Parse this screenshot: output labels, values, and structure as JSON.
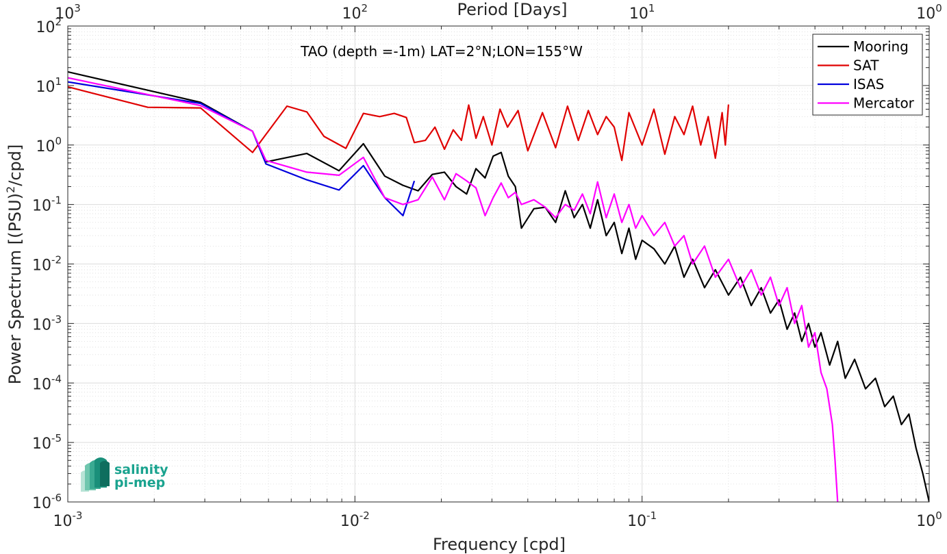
{
  "chart_data": {
    "type": "line",
    "title": "TAO (depth =-1m) LAT=2°N;LON=155°W",
    "xlabel": "Frequency [cpd]",
    "ylabel": "Power Spectrum [(PSU)",
    "ylabel_sup": "2",
    "ylabel_tail": "/cpd]",
    "top_xlabel": "Period [Days]",
    "x_scale": "log",
    "y_scale": "log",
    "xlim": [
      0.001,
      1
    ],
    "ylim": [
      1e-06,
      100
    ],
    "grid": true,
    "legend_position": "top-right",
    "x_ticks": [
      {
        "base": "10",
        "exp": "-3",
        "value": 0.001
      },
      {
        "base": "10",
        "exp": "-2",
        "value": 0.01
      },
      {
        "base": "10",
        "exp": "-1",
        "value": 0.1
      },
      {
        "base": "10",
        "exp": "0",
        "value": 1
      }
    ],
    "top_x_ticks": [
      {
        "base": "10",
        "exp": "3",
        "value": 0.001
      },
      {
        "base": "10",
        "exp": "2",
        "value": 0.01
      },
      {
        "base": "10",
        "exp": "1",
        "value": 0.1
      },
      {
        "base": "10",
        "exp": "0",
        "value": 1
      }
    ],
    "y_ticks": [
      {
        "base": "10",
        "exp": "-6",
        "value": 1e-06
      },
      {
        "base": "10",
        "exp": "-5",
        "value": 1e-05
      },
      {
        "base": "10",
        "exp": "-4",
        "value": 0.0001
      },
      {
        "base": "10",
        "exp": "-3",
        "value": 0.001
      },
      {
        "base": "10",
        "exp": "-2",
        "value": 0.01
      },
      {
        "base": "10",
        "exp": "-1",
        "value": 0.1
      },
      {
        "base": "10",
        "exp": "0",
        "value": 1
      },
      {
        "base": "10",
        "exp": "1",
        "value": 10
      },
      {
        "base": "10",
        "exp": "2",
        "value": 100
      }
    ],
    "series": [
      {
        "name": "Mooring",
        "color": "#000000",
        "points": [
          [
            0.001,
            17
          ],
          [
            0.0029,
            5.2
          ],
          [
            0.0044,
            1.7
          ],
          [
            0.0049,
            0.52
          ],
          [
            0.0068,
            0.72
          ],
          [
            0.0088,
            0.37
          ],
          [
            0.0107,
            1.05
          ],
          [
            0.0127,
            0.3
          ],
          [
            0.0147,
            0.21
          ],
          [
            0.0166,
            0.17
          ],
          [
            0.0186,
            0.32
          ],
          [
            0.0205,
            0.35
          ],
          [
            0.0225,
            0.2
          ],
          [
            0.0245,
            0.15
          ],
          [
            0.0264,
            0.4
          ],
          [
            0.0284,
            0.28
          ],
          [
            0.0303,
            0.65
          ],
          [
            0.0323,
            0.75
          ],
          [
            0.0342,
            0.3
          ],
          [
            0.0362,
            0.2
          ],
          [
            0.038,
            0.04
          ],
          [
            0.042,
            0.085
          ],
          [
            0.046,
            0.09
          ],
          [
            0.05,
            0.05
          ],
          [
            0.054,
            0.17
          ],
          [
            0.058,
            0.06
          ],
          [
            0.062,
            0.1
          ],
          [
            0.066,
            0.04
          ],
          [
            0.07,
            0.12
          ],
          [
            0.075,
            0.03
          ],
          [
            0.08,
            0.05
          ],
          [
            0.085,
            0.015
          ],
          [
            0.09,
            0.04
          ],
          [
            0.095,
            0.012
          ],
          [
            0.1,
            0.025
          ],
          [
            0.11,
            0.018
          ],
          [
            0.12,
            0.01
          ],
          [
            0.13,
            0.02
          ],
          [
            0.14,
            0.006
          ],
          [
            0.15,
            0.012
          ],
          [
            0.165,
            0.004
          ],
          [
            0.18,
            0.008
          ],
          [
            0.2,
            0.003
          ],
          [
            0.22,
            0.006
          ],
          [
            0.24,
            0.002
          ],
          [
            0.26,
            0.004
          ],
          [
            0.28,
            0.0015
          ],
          [
            0.3,
            0.0025
          ],
          [
            0.32,
            0.0008
          ],
          [
            0.34,
            0.0015
          ],
          [
            0.36,
            0.0005
          ],
          [
            0.38,
            0.001
          ],
          [
            0.4,
            0.0004
          ],
          [
            0.42,
            0.0007
          ],
          [
            0.45,
            0.0002
          ],
          [
            0.48,
            0.0005
          ],
          [
            0.51,
            0.00012
          ],
          [
            0.55,
            0.00025
          ],
          [
            0.6,
            8e-05
          ],
          [
            0.65,
            0.00012
          ],
          [
            0.7,
            4e-05
          ],
          [
            0.75,
            6e-05
          ],
          [
            0.8,
            2e-05
          ],
          [
            0.85,
            3e-05
          ],
          [
            0.9,
            8e-06
          ],
          [
            0.95,
            3e-06
          ],
          [
            1.0,
            1e-06
          ]
        ]
      },
      {
        "name": "SAT",
        "color": "#e00000",
        "points": [
          [
            0.001,
            9.5
          ],
          [
            0.0019,
            4.3
          ],
          [
            0.0029,
            4.2
          ],
          [
            0.0044,
            0.75
          ],
          [
            0.0058,
            4.5
          ],
          [
            0.0068,
            3.6
          ],
          [
            0.0078,
            1.4
          ],
          [
            0.0093,
            0.88
          ],
          [
            0.0107,
            3.4
          ],
          [
            0.0122,
            3.0
          ],
          [
            0.0137,
            3.4
          ],
          [
            0.0151,
            2.9
          ],
          [
            0.0161,
            1.1
          ],
          [
            0.0176,
            1.2
          ],
          [
            0.019,
            2.0
          ],
          [
            0.0205,
            0.85
          ],
          [
            0.022,
            1.8
          ],
          [
            0.0235,
            1.2
          ],
          [
            0.0249,
            4.7
          ],
          [
            0.0264,
            1.3
          ],
          [
            0.028,
            3.0
          ],
          [
            0.03,
            1.0
          ],
          [
            0.032,
            4.0
          ],
          [
            0.034,
            2.0
          ],
          [
            0.037,
            3.8
          ],
          [
            0.04,
            0.8
          ],
          [
            0.045,
            3.5
          ],
          [
            0.05,
            0.9
          ],
          [
            0.055,
            4.5
          ],
          [
            0.06,
            1.2
          ],
          [
            0.065,
            3.8
          ],
          [
            0.07,
            1.5
          ],
          [
            0.075,
            3.0
          ],
          [
            0.08,
            2.0
          ],
          [
            0.085,
            0.55
          ],
          [
            0.09,
            3.5
          ],
          [
            0.1,
            1.0
          ],
          [
            0.11,
            4.0
          ],
          [
            0.12,
            0.7
          ],
          [
            0.13,
            3.0
          ],
          [
            0.14,
            1.5
          ],
          [
            0.15,
            4.5
          ],
          [
            0.16,
            1.0
          ],
          [
            0.17,
            3.0
          ],
          [
            0.18,
            0.6
          ],
          [
            0.19,
            3.5
          ],
          [
            0.195,
            1.0
          ],
          [
            0.2,
            4.8
          ]
        ]
      },
      {
        "name": "ISAS",
        "color": "#0000dd",
        "points": [
          [
            0.001,
            11.5
          ],
          [
            0.0029,
            5.0
          ],
          [
            0.0044,
            1.7
          ],
          [
            0.0049,
            0.48
          ],
          [
            0.0068,
            0.26
          ],
          [
            0.0088,
            0.175
          ],
          [
            0.0107,
            0.45
          ],
          [
            0.0127,
            0.13
          ],
          [
            0.0147,
            0.065
          ],
          [
            0.0161,
            0.25
          ]
        ]
      },
      {
        "name": "Mercator",
        "color": "#ff00ff",
        "points": [
          [
            0.001,
            13.5
          ],
          [
            0.0029,
            4.6
          ],
          [
            0.0044,
            1.7
          ],
          [
            0.0049,
            0.55
          ],
          [
            0.0068,
            0.35
          ],
          [
            0.0088,
            0.31
          ],
          [
            0.0107,
            0.62
          ],
          [
            0.0127,
            0.13
          ],
          [
            0.0147,
            0.1
          ],
          [
            0.0166,
            0.12
          ],
          [
            0.0186,
            0.29
          ],
          [
            0.0205,
            0.12
          ],
          [
            0.0225,
            0.33
          ],
          [
            0.0245,
            0.25
          ],
          [
            0.0264,
            0.19
          ],
          [
            0.0284,
            0.065
          ],
          [
            0.0303,
            0.13
          ],
          [
            0.0323,
            0.23
          ],
          [
            0.0342,
            0.13
          ],
          [
            0.0362,
            0.16
          ],
          [
            0.038,
            0.1
          ],
          [
            0.042,
            0.12
          ],
          [
            0.046,
            0.09
          ],
          [
            0.05,
            0.06
          ],
          [
            0.054,
            0.1
          ],
          [
            0.058,
            0.08
          ],
          [
            0.062,
            0.15
          ],
          [
            0.066,
            0.07
          ],
          [
            0.07,
            0.24
          ],
          [
            0.075,
            0.06
          ],
          [
            0.08,
            0.15
          ],
          [
            0.085,
            0.05
          ],
          [
            0.09,
            0.1
          ],
          [
            0.095,
            0.04
          ],
          [
            0.1,
            0.065
          ],
          [
            0.11,
            0.03
          ],
          [
            0.12,
            0.05
          ],
          [
            0.13,
            0.02
          ],
          [
            0.14,
            0.03
          ],
          [
            0.15,
            0.01
          ],
          [
            0.165,
            0.02
          ],
          [
            0.18,
            0.006
          ],
          [
            0.2,
            0.012
          ],
          [
            0.22,
            0.004
          ],
          [
            0.24,
            0.008
          ],
          [
            0.26,
            0.003
          ],
          [
            0.28,
            0.006
          ],
          [
            0.3,
            0.002
          ],
          [
            0.32,
            0.004
          ],
          [
            0.34,
            0.001
          ],
          [
            0.36,
            0.002
          ],
          [
            0.38,
            0.0004
          ],
          [
            0.4,
            0.0007
          ],
          [
            0.42,
            0.00015
          ],
          [
            0.44,
            8e-05
          ],
          [
            0.46,
            2e-05
          ],
          [
            0.47,
            5e-06
          ],
          [
            0.48,
            1e-06
          ]
        ]
      }
    ]
  },
  "logo": {
    "line1": "salinity",
    "line2": "pi-mep"
  }
}
